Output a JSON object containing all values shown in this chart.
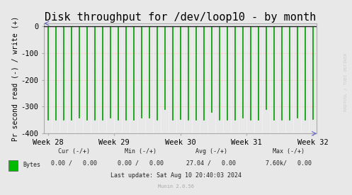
{
  "title": "Disk throughput for /dev/loop10 - by month",
  "ylabel": "Pr second read (-) / write (+)",
  "ylim": [
    -400,
    10
  ],
  "yticks": [
    0,
    -100,
    -200,
    -300,
    -400
  ],
  "xlabels": [
    "Week 28",
    "Week 29",
    "Week 30",
    "Week 31",
    "Week 32"
  ],
  "background_color": "#e8e8e8",
  "plot_bg_color": "#e8e8e8",
  "grid_color_h": "#ffaaaa",
  "grid_color_v": "#ffffff",
  "bar_color": "#00bb00",
  "bar_edge_color": "#009900",
  "line_color_zero": "#222222",
  "title_fontsize": 11,
  "tick_fontsize": 7.5,
  "ylabel_fontsize": 7,
  "legend_label": "Bytes",
  "legend_color": "#00bb00",
  "footer_munin": "Munin 2.0.56",
  "watermark": "RRDTOOL / TOBI OETIKER",
  "num_bars": 35,
  "num_vgrid": 35,
  "bar_width": 0.12,
  "bar_heights": [
    -350,
    -350,
    -350,
    -350,
    -340,
    -350,
    -350,
    -350,
    -340,
    -350,
    -350,
    -350,
    -340,
    -340,
    -350,
    -310,
    -350,
    -345,
    -350,
    -350,
    -350,
    -320,
    -350,
    -350,
    -350,
    -340,
    -350,
    -350,
    -310,
    -350,
    -350,
    -350,
    -340,
    -350,
    -345
  ]
}
